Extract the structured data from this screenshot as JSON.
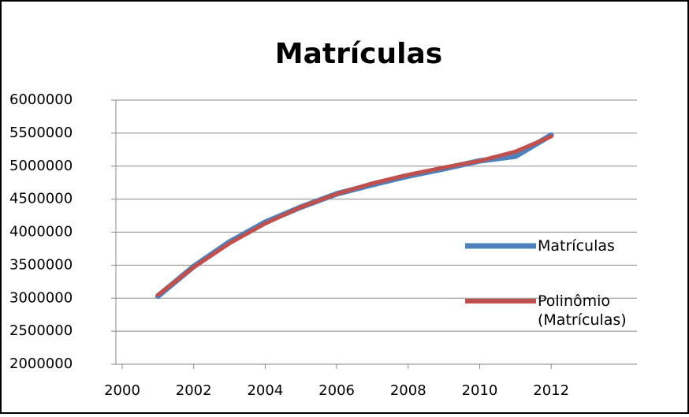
{
  "chart_data": {
    "type": "line",
    "title": "Matrículas",
    "x": [
      2001,
      2002,
      2003,
      2004,
      2005,
      2006,
      2007,
      2008,
      2009,
      2010,
      2011,
      2012
    ],
    "series": [
      {
        "name": "Matrículas",
        "color": "#4f81bd",
        "values": [
          3030000,
          3480000,
          3850000,
          4150000,
          4380000,
          4580000,
          4720000,
          4850000,
          4960000,
          5080000,
          5150000,
          5470000
        ]
      },
      {
        "name": "Polinômio (Matrículas)",
        "color": "#c0504d",
        "values": [
          3050000,
          3470000,
          3830000,
          4130000,
          4380000,
          4580000,
          4740000,
          4870000,
          4980000,
          5080000,
          5220000,
          5450000
        ]
      }
    ],
    "xlim": [
      2000,
      2014.4
    ],
    "xticks": [
      2000,
      2002,
      2004,
      2006,
      2008,
      2010,
      2012
    ],
    "ylim": [
      2000000,
      6000000
    ],
    "yticks": [
      2000000,
      2500000,
      3000000,
      3500000,
      4000000,
      4500000,
      5000000,
      5500000,
      6000000
    ],
    "grid": true,
    "legend": "right"
  }
}
